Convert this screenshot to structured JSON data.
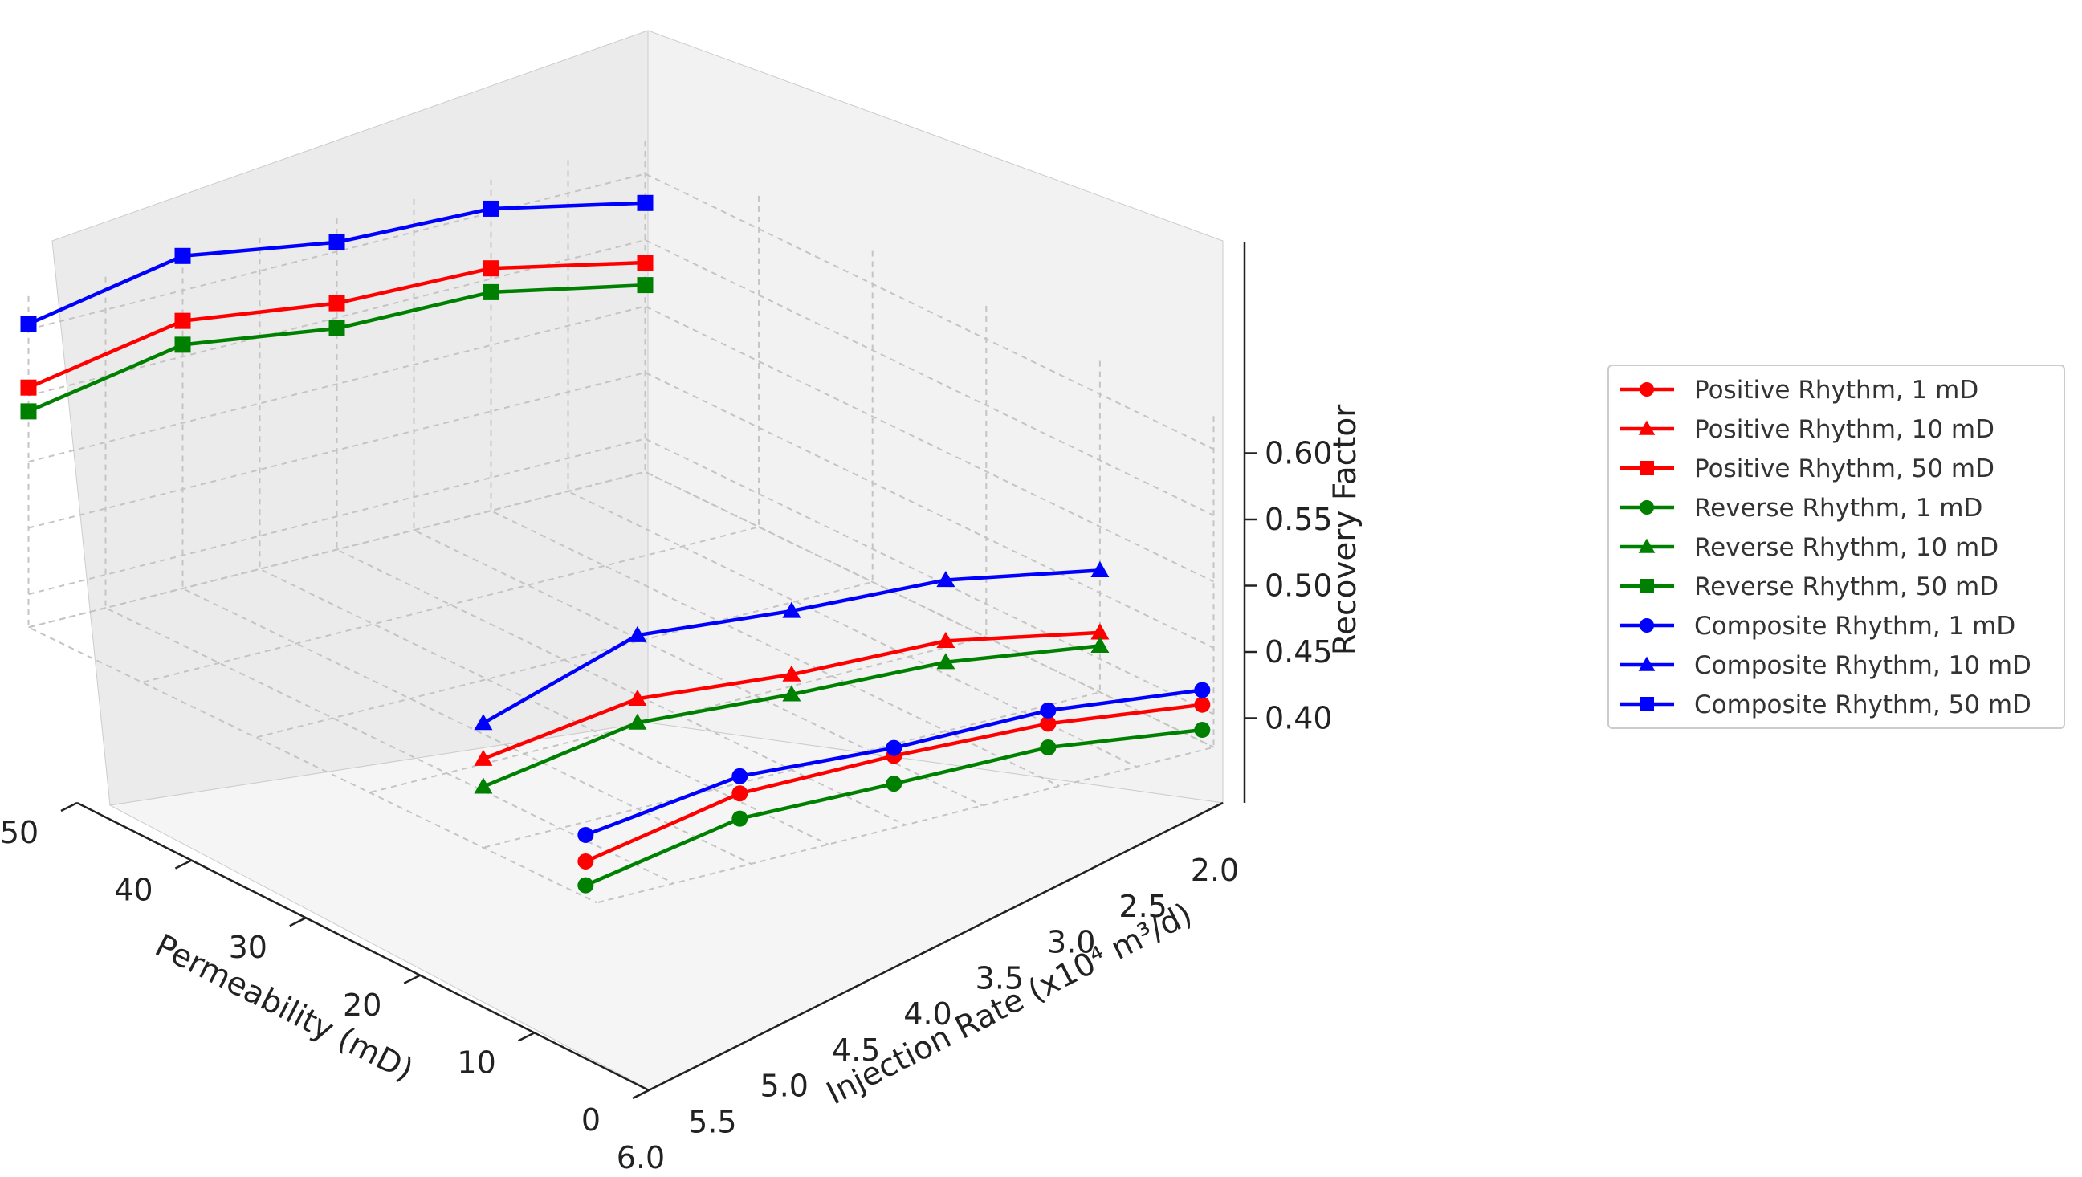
{
  "chart_data": {
    "type": "line3d",
    "title": "",
    "xlabel": "Injection Rate (x10⁴ m³/d)",
    "ylabel": "Permeability (mD)",
    "zlabel": "Recovery Factor",
    "x_ticks": [
      "2.0",
      "2.5",
      "3.0",
      "3.5",
      "4.0",
      "4.5",
      "5.0",
      "5.5",
      "6.0"
    ],
    "y_ticks": [
      "0",
      "10",
      "20",
      "30",
      "40",
      "50"
    ],
    "z_ticks": [
      "0.40",
      "0.45",
      "0.50",
      "0.55",
      "0.60"
    ],
    "x": [
      2,
      3,
      4,
      5,
      6
    ],
    "colors": {
      "positive": "#ff0000",
      "reverse": "#008000",
      "composite": "#0000ff"
    },
    "series": [
      {
        "name": "Positive Rhythm, 1 mD",
        "permeability": 1,
        "color": "#ff0000",
        "marker": "circle",
        "values": [
          0.403,
          0.418,
          0.423,
          0.424,
          0.402
        ]
      },
      {
        "name": "Positive Rhythm, 10 mD",
        "permeability": 10,
        "color": "#ff0000",
        "marker": "triangle",
        "values": [
          0.42,
          0.443,
          0.447,
          0.458,
          0.442
        ]
      },
      {
        "name": "Positive Rhythm, 50 mD",
        "permeability": 50,
        "color": "#ff0000",
        "marker": "square",
        "values": [
          0.533,
          0.558,
          0.561,
          0.577,
          0.556
        ]
      },
      {
        "name": "Reverse Rhythm, 1 mD",
        "permeability": 1,
        "color": "#008000",
        "marker": "circle",
        "values": [
          0.384,
          0.4,
          0.402,
          0.405,
          0.384
        ]
      },
      {
        "name": "Reverse Rhythm, 10 mD",
        "permeability": 10,
        "color": "#008000",
        "marker": "triangle",
        "values": [
          0.41,
          0.427,
          0.432,
          0.44,
          0.421
        ]
      },
      {
        "name": "Reverse Rhythm, 50 mD",
        "permeability": 50,
        "color": "#008000",
        "marker": "square",
        "values": [
          0.516,
          0.54,
          0.542,
          0.559,
          0.538
        ]
      },
      {
        "name": "Composite Rhythm, 1 mD",
        "permeability": 1,
        "color": "#0000ff",
        "marker": "circle",
        "values": [
          0.414,
          0.428,
          0.429,
          0.437,
          0.422
        ]
      },
      {
        "name": "Composite Rhythm, 10 mD",
        "permeability": 10,
        "color": "#0000ff",
        "marker": "triangle",
        "values": [
          0.467,
          0.489,
          0.495,
          0.506,
          0.469
        ]
      },
      {
        "name": "Composite Rhythm, 50 mD",
        "permeability": 50,
        "color": "#0000ff",
        "marker": "square",
        "values": [
          0.578,
          0.603,
          0.607,
          0.626,
          0.604
        ]
      }
    ],
    "zlim": [
      0.375,
      0.625
    ],
    "xlim": [
      2,
      6
    ],
    "ylim": [
      0,
      50
    ],
    "grid": true,
    "legend_position": "right"
  }
}
